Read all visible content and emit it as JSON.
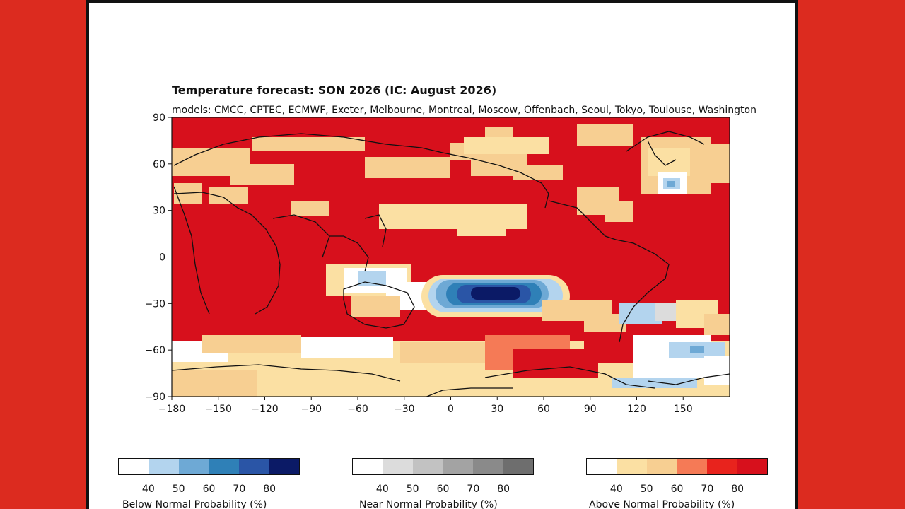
{
  "title": "Temperature forecast: SON 2026 (IC: August 2026)",
  "subtitle": "models: CMCC, CPTEC, ECMWF, Exeter, Melbourne, Montreal, Moscow, Offenbach, Seoul, Tokyo, Toulouse, Washington",
  "map": {
    "x_ticks": [
      "−180",
      "−150",
      "−120",
      "−90",
      "−60",
      "−30",
      "0",
      "30",
      "60",
      "90",
      "120",
      "150"
    ],
    "y_ticks": [
      "90",
      "60",
      "30",
      "0",
      "−30",
      "−60",
      "−90"
    ],
    "x_range": [
      -180,
      180
    ],
    "y_range": [
      -90,
      90
    ],
    "background_color": "#d7101c"
  },
  "colorbars": [
    {
      "name": "below",
      "title": "Below Normal Probability (%)",
      "colors": [
        "#ffffff",
        "#b3d4ee",
        "#6ea9d5",
        "#2f80b7",
        "#2a55a6",
        "#0b1a66"
      ],
      "ticks": [
        "40",
        "50",
        "60",
        "70",
        "80"
      ]
    },
    {
      "name": "near",
      "title": "Near Normal Probability (%)",
      "colors": [
        "#ffffff",
        "#dcdcdc",
        "#c2c2c2",
        "#a3a3a3",
        "#8a8a8a",
        "#6e6e6e"
      ],
      "ticks": [
        "40",
        "50",
        "60",
        "70",
        "80"
      ]
    },
    {
      "name": "above",
      "title": "Above Normal Probability (%)",
      "colors": [
        "#ffffff",
        "#fbe0a3",
        "#f7cf92",
        "#f57a56",
        "#e8231d",
        "#d7101c"
      ],
      "ticks": [
        "40",
        "50",
        "60",
        "70",
        "80"
      ]
    }
  ]
}
